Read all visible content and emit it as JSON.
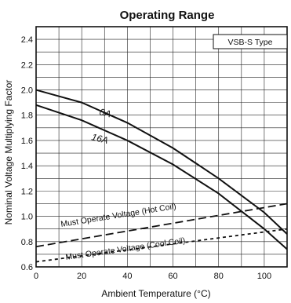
{
  "chart_data": {
    "type": "line",
    "title": "Operating Range",
    "xlabel": "Ambient Temperature (°C)",
    "ylabel": "Nominal Voltage Multiplying Factor",
    "xlim": [
      0,
      110
    ],
    "ylim": [
      0.6,
      2.5
    ],
    "x_ticks": [
      "0",
      "20",
      "40",
      "60",
      "80",
      "100"
    ],
    "y_ticks": [
      "0.6",
      "0.8",
      "1.0",
      "1.2",
      "1.4",
      "1.6",
      "1.8",
      "2.0",
      "2.2",
      "2.4"
    ],
    "x_tick_values": [
      0,
      20,
      40,
      60,
      80,
      100
    ],
    "y_tick_values": [
      0.6,
      0.8,
      1.0,
      1.2,
      1.4,
      1.6,
      1.8,
      2.0,
      2.2,
      2.4
    ],
    "legend_box": "VSB-S Type",
    "grid": true,
    "series": [
      {
        "name": "0A",
        "style": "solid",
        "x": [
          0,
          20,
          40,
          60,
          80,
          100,
          110
        ],
        "y": [
          2.0,
          1.9,
          1.74,
          1.54,
          1.3,
          1.03,
          0.86
        ]
      },
      {
        "name": "16A",
        "style": "solid",
        "x": [
          0,
          20,
          40,
          60,
          80,
          100,
          110
        ],
        "y": [
          1.88,
          1.76,
          1.6,
          1.41,
          1.18,
          0.9,
          0.74
        ]
      },
      {
        "name": "Must Operate Voltage (Hot Coil)",
        "style": "long-dash",
        "x": [
          0,
          110
        ],
        "y": [
          0.76,
          1.1
        ]
      },
      {
        "name": "Must Operate Voltage (Cool Coil)",
        "style": "short-dash",
        "x": [
          0,
          110
        ],
        "y": [
          0.64,
          0.9
        ]
      }
    ]
  }
}
